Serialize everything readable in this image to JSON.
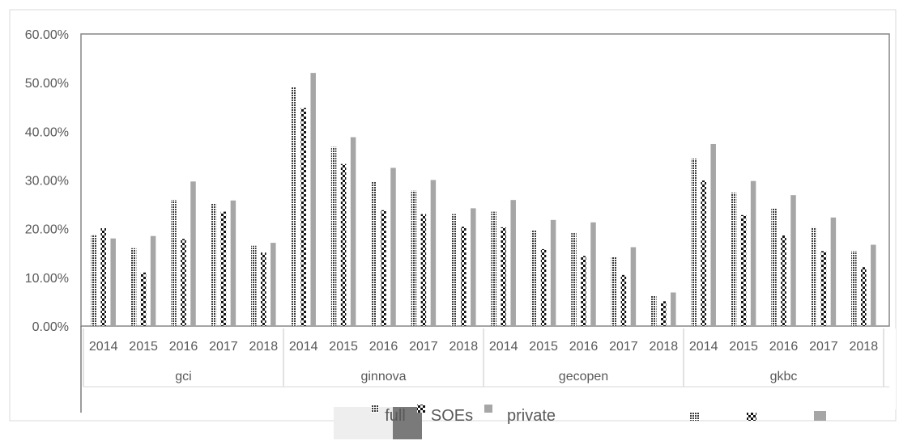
{
  "chart_data": {
    "type": "bar",
    "y_ticks": [
      "60.00%",
      "50.00%",
      "40.00%",
      "30.00%",
      "20.00%",
      "10.00%",
      "0.00%"
    ],
    "ylim": [
      0,
      60
    ],
    "y_unit": "%",
    "groups": [
      {
        "label": "gci",
        "years": [
          "2014",
          "2015",
          "2016",
          "2017",
          "2018"
        ]
      },
      {
        "label": "ginnova",
        "years": [
          "2014",
          "2015",
          "2016",
          "2017",
          "2018"
        ]
      },
      {
        "label": "gecopen",
        "years": [
          "2014",
          "2015",
          "2016",
          "2017",
          "2018"
        ]
      },
      {
        "label": "gkbc",
        "years": [
          "2014",
          "2015",
          "2016",
          "2017",
          "2018"
        ]
      }
    ],
    "series": [
      {
        "name": "full",
        "pattern": "crosshatch",
        "values": [
          18.8,
          16.0,
          25.9,
          25.1,
          16.5,
          49.1,
          36.8,
          29.7,
          27.8,
          23.0,
          23.5,
          19.7,
          19.1,
          14.3,
          6.2,
          34.4,
          27.4,
          24.1,
          20.3,
          15.4
        ]
      },
      {
        "name": "SOEs",
        "pattern": "checker",
        "values": [
          20.1,
          11.0,
          17.9,
          23.5,
          15.1,
          44.8,
          33.3,
          23.8,
          23.0,
          20.4,
          20.3,
          15.8,
          14.4,
          10.5,
          5.1,
          29.9,
          22.8,
          18.6,
          15.4,
          12.1
        ]
      },
      {
        "name": "private",
        "pattern": "solid",
        "values": [
          18.0,
          18.5,
          29.7,
          25.8,
          17.1,
          52.0,
          38.8,
          32.5,
          30.0,
          24.2,
          25.9,
          21.8,
          21.3,
          16.2,
          6.9,
          37.4,
          29.8,
          26.9,
          22.3,
          16.7
        ]
      }
    ],
    "colors": {
      "solid": "#a6a6a6",
      "pattern_dark": "#262626",
      "axis": "#868686",
      "gridline": "#d9d9d9"
    },
    "legend": {
      "position": "bottom"
    }
  }
}
